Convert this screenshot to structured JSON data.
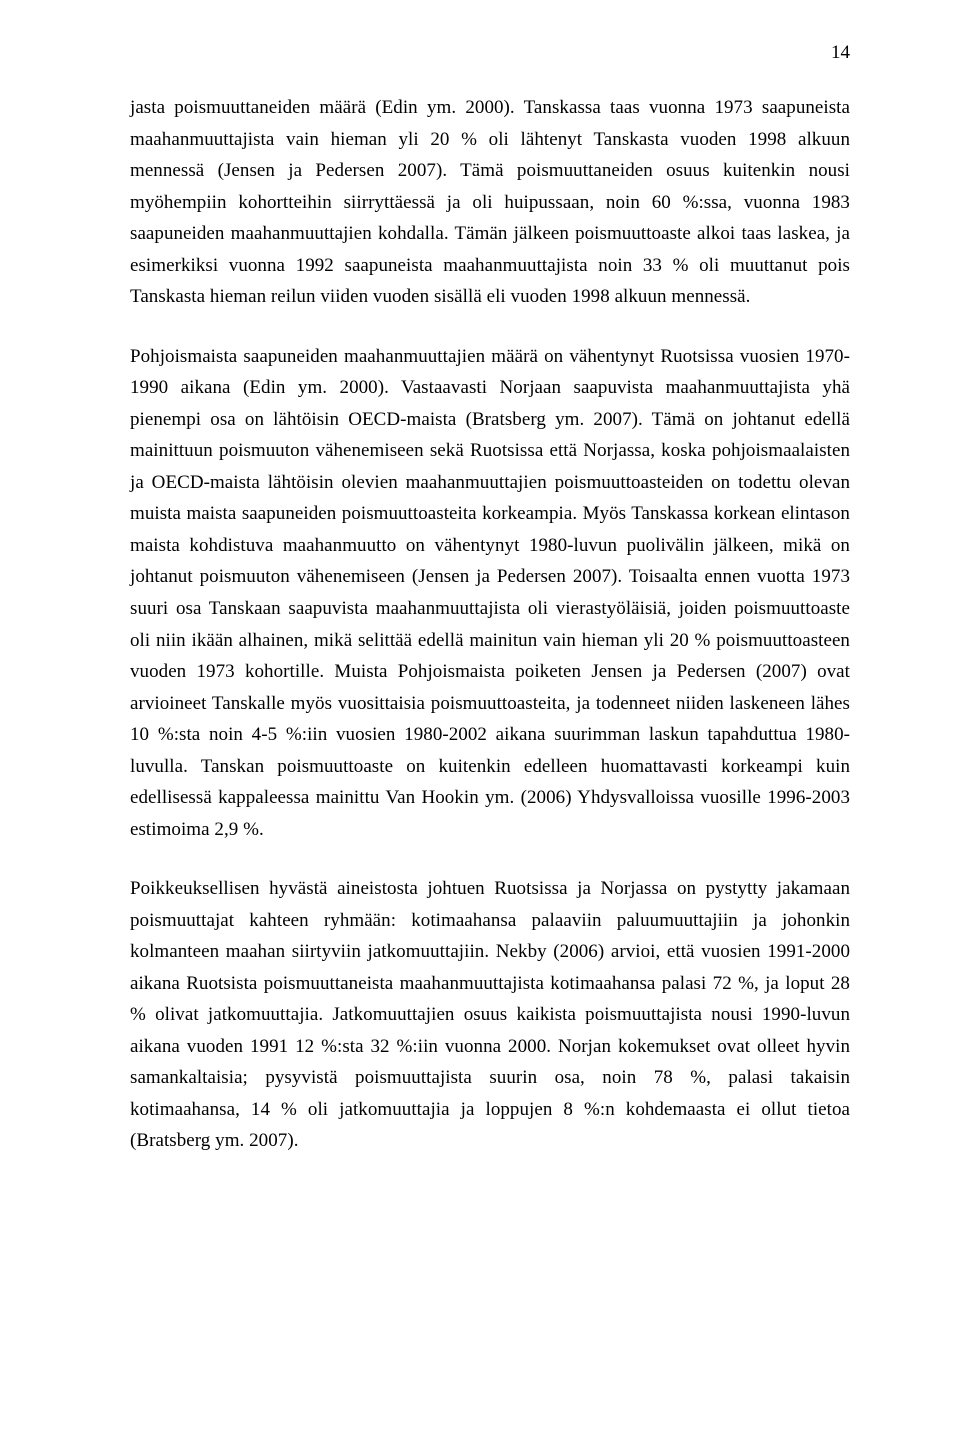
{
  "page_number": "14",
  "paragraphs": [
    "jasta poismuuttaneiden määrä (Edin ym. 2000). Tanskassa taas vuonna 1973 saapuneista maahanmuuttajista vain hieman yli 20 % oli lähtenyt Tanskasta vuoden 1998 alkuun mennessä (Jensen ja Pedersen 2007). Tämä poismuuttaneiden osuus kuitenkin nousi myöhempiin kohortteihin siirryttäessä ja oli huipussaan, noin 60 %:ssa, vuonna 1983 saapuneiden maahanmuuttajien kohdalla. Tämän jälkeen poismuuttoaste alkoi taas laskea, ja esimerkiksi vuonna 1992 saapuneista maahanmuuttajista noin 33 % oli muuttanut pois Tanskasta hieman reilun viiden vuoden sisällä eli vuoden 1998 alkuun mennessä.",
    "Pohjoismaista saapuneiden maahanmuuttajien määrä on vähentynyt Ruotsissa vuosien 1970-1990 aikana (Edin ym. 2000). Vastaavasti Norjaan saapuvista maahanmuuttajista yhä pienempi osa on lähtöisin OECD-maista (Bratsberg ym. 2007). Tämä on johtanut edellä mainittuun poismuuton vähenemiseen sekä Ruotsissa että Norjassa, koska pohjoismaalaisten ja OECD-maista lähtöisin olevien maahanmuuttajien poismuuttoasteiden on todettu olevan muista maista saapuneiden poismuuttoasteita korkeampia. Myös Tanskassa korkean elintason maista kohdistuva maahanmuutto on vähentynyt 1980-luvun puolivälin jälkeen, mikä on johtanut poismuuton vähenemiseen (Jensen ja Pedersen 2007). Toisaalta ennen vuotta 1973 suuri osa Tanskaan saapuvista maahanmuuttajista oli vierastyöläisiä, joiden poismuuttoaste oli niin ikään alhainen, mikä selittää edellä mainitun vain hieman yli 20 % poismuuttoasteen vuoden 1973 kohortille. Muista Pohjoismaista poiketen Jensen ja Pedersen (2007) ovat arvioineet Tanskalle myös vuosittaisia poismuuttoasteita, ja todenneet niiden laskeneen lähes 10 %:sta noin 4-5 %:iin vuosien 1980-2002 aikana suurimman laskun tapahduttua 1980-luvulla. Tanskan poismuuttoaste on kuitenkin edelleen huomattavasti korkeampi kuin edellisessä kappaleessa mainittu Van Hookin ym. (2006) Yhdysvalloissa vuosille 1996-2003 estimoima 2,9 %.",
    "Poikkeuksellisen hyvästä aineistosta johtuen Ruotsissa ja Norjassa on pystytty jakamaan poismuuttajat kahteen ryhmään: kotimaahansa palaaviin paluumuuttajiin ja johonkin kolmanteen maahan siirtyviin jatkomuuttajiin. Nekby (2006) arvioi, että vuosien 1991-2000 aikana Ruotsista poismuuttaneista maahanmuuttajista kotimaahansa palasi 72 %, ja loput 28 % olivat jatkomuuttajia. Jatkomuuttajien osuus kaikista poismuuttajista nousi 1990-luvun aikana vuoden 1991 12 %:sta 32 %:iin vuonna 2000. Norjan kokemukset ovat olleet hyvin samankaltaisia; pysyvistä poismuuttajista suurin osa, noin 78 %, palasi takaisin kotimaahansa, 14 % oli jatkomuuttajia ja loppujen 8 %:n kohdemaasta ei ollut tietoa (Bratsberg ym. 2007)."
  ]
}
